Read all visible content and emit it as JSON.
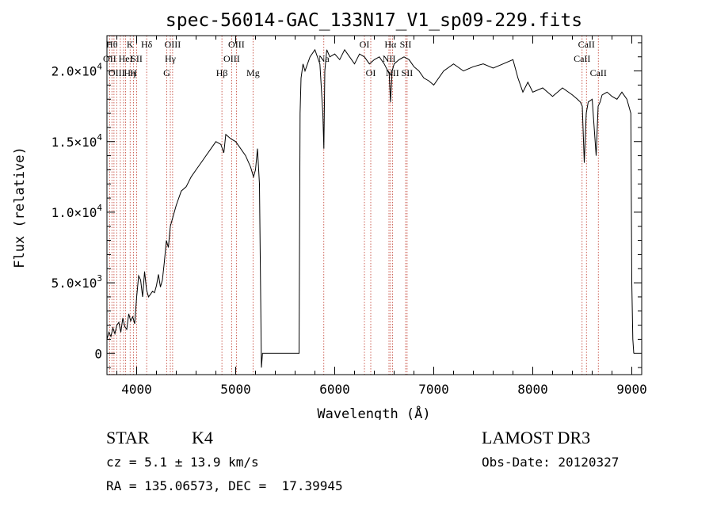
{
  "chart_data": {
    "type": "line",
    "title": "spec-56014-GAC_133N17_V1_sp09-229.fits",
    "xlabel": "Wavelength (Å)",
    "ylabel": "Flux (relative)",
    "xlim": [
      3700,
      9100
    ],
    "ylim": [
      -1500,
      22500
    ],
    "xticks": [
      4000,
      5000,
      6000,
      7000,
      8000,
      9000
    ],
    "xtick_labels": [
      "4000",
      "5000",
      "6000",
      "7000",
      "8000",
      "9000"
    ],
    "yticks": [
      0,
      5000,
      10000,
      15000,
      20000
    ],
    "ytick_labels": [
      {
        "base": "0",
        "exp": ""
      },
      {
        "base": "5.0×10",
        "exp": "3"
      },
      {
        "base": "1.0×10",
        "exp": "4"
      },
      {
        "base": "1.5×10",
        "exp": "4"
      },
      {
        "base": "2.0×10",
        "exp": "4"
      }
    ],
    "grid": false,
    "series": [
      {
        "color": "#000000",
        "x": [
          3700,
          3720,
          3740,
          3760,
          3780,
          3800,
          3820,
          3840,
          3860,
          3880,
          3900,
          3920,
          3940,
          3960,
          3980,
          4000,
          4020,
          4040,
          4060,
          4080,
          4100,
          4120,
          4140,
          4160,
          4180,
          4200,
          4220,
          4240,
          4260,
          4280,
          4300,
          4320,
          4340,
          4360,
          4380,
          4400,
          4450,
          4500,
          4550,
          4600,
          4650,
          4700,
          4750,
          4800,
          4850,
          4880,
          4900,
          4950,
          5000,
          5050,
          5100,
          5150,
          5180,
          5200,
          5220,
          5240,
          5260,
          5270,
          5300,
          5400,
          5500,
          5600,
          5640,
          5650,
          5660,
          5680,
          5700,
          5750,
          5800,
          5850,
          5880,
          5890,
          5900,
          5920,
          5950,
          6000,
          6050,
          6100,
          6150,
          6200,
          6250,
          6300,
          6350,
          6400,
          6450,
          6500,
          6550,
          6563,
          6580,
          6600,
          6650,
          6700,
          6750,
          6800,
          6850,
          6900,
          6950,
          7000,
          7100,
          7200,
          7300,
          7400,
          7500,
          7600,
          7700,
          7800,
          7850,
          7900,
          7950,
          8000,
          8100,
          8200,
          8300,
          8400,
          8450,
          8480,
          8500,
          8520,
          8540,
          8560,
          8600,
          8640,
          8660,
          8680,
          8700,
          8750,
          8800,
          8850,
          8900,
          8950,
          8990,
          9000,
          9010,
          9020
        ],
        "y": [
          1000,
          1500,
          1200,
          1800,
          1400,
          2000,
          2200,
          1500,
          2500,
          1900,
          1700,
          2800,
          2300,
          2600,
          2100,
          4000,
          5500,
          5200,
          4000,
          5800,
          4500,
          4000,
          4200,
          4400,
          4300,
          4800,
          5600,
          4700,
          5200,
          6500,
          8000,
          7500,
          9000,
          9500,
          10000,
          10500,
          11500,
          11800,
          12500,
          13000,
          13500,
          14000,
          14500,
          15000,
          14800,
          14200,
          15500,
          15200,
          15000,
          14500,
          14000,
          13200,
          12500,
          13000,
          14500,
          12000,
          -1000,
          0,
          0,
          0,
          0,
          0,
          0,
          17000,
          19500,
          20500,
          20000,
          21000,
          21500,
          20500,
          17000,
          14500,
          20000,
          21500,
          21000,
          21200,
          20800,
          21500,
          21000,
          20500,
          21200,
          21000,
          20500,
          20800,
          21000,
          20500,
          19800,
          17800,
          20000,
          20500,
          20800,
          21000,
          20800,
          20300,
          20000,
          19500,
          19300,
          19000,
          20000,
          20500,
          20000,
          20300,
          20500,
          20200,
          20500,
          20800,
          19500,
          18500,
          19200,
          18500,
          18800,
          18200,
          18800,
          18300,
          18000,
          17800,
          17500,
          13500,
          17000,
          17800,
          18000,
          14000,
          17500,
          17800,
          18300,
          18500,
          18200,
          18000,
          18500,
          18000,
          17000,
          5000,
          1000,
          0
        ]
      }
    ],
    "lines": [
      {
        "x": 3727,
        "label": "OII",
        "row": 1,
        "dx": 0
      },
      {
        "x": 3750,
        "label": "Hθ",
        "row": 0,
        "dx": 0
      },
      {
        "x": 3771,
        "label": "",
        "row": 0,
        "dx": 0
      },
      {
        "x": 3798,
        "label": "OIII",
        "row": 2,
        "dx": 0
      },
      {
        "x": 3835,
        "label": "Hη",
        "row": 2,
        "dx": 12
      },
      {
        "x": 3868,
        "label": "",
        "row": 0,
        "dx": 0
      },
      {
        "x": 3889,
        "label": "HeI",
        "row": 1,
        "dx": 0
      },
      {
        "x": 3934,
        "label": "K",
        "row": 0,
        "dx": 0
      },
      {
        "x": 3969,
        "label": "H",
        "row": 2,
        "dx": 0
      },
      {
        "x": 4000,
        "label": "SII",
        "row": 1,
        "dx": 0
      },
      {
        "x": 4101,
        "label": "Hδ",
        "row": 0,
        "dx": 0
      },
      {
        "x": 4304,
        "label": "G",
        "row": 2,
        "dx": 0
      },
      {
        "x": 4340,
        "label": "Hγ",
        "row": 1,
        "dx": 0
      },
      {
        "x": 4363,
        "label": "OIII",
        "row": 0,
        "dx": 0
      },
      {
        "x": 4861,
        "label": "Hβ",
        "row": 2,
        "dx": 0
      },
      {
        "x": 4959,
        "label": "OIII",
        "row": 1,
        "dx": 0
      },
      {
        "x": 5007,
        "label": "OIII",
        "row": 0,
        "dx": 0
      },
      {
        "x": 5175,
        "label": "Mg",
        "row": 2,
        "dx": 0
      },
      {
        "x": 5890,
        "label": "Na",
        "row": 1,
        "dx": 0
      },
      {
        "x": 6300,
        "label": "OI",
        "row": 0,
        "dx": 0
      },
      {
        "x": 6364,
        "label": "OI",
        "row": 2,
        "dx": 0
      },
      {
        "x": 6548,
        "label": "NII",
        "row": 1,
        "dx": 0
      },
      {
        "x": 6563,
        "label": "Hα",
        "row": 0,
        "dx": 0
      },
      {
        "x": 6583,
        "label": "NII",
        "row": 2,
        "dx": 0
      },
      {
        "x": 6716,
        "label": "SII",
        "row": 0,
        "dx": 0
      },
      {
        "x": 6731,
        "label": "SII",
        "row": 2,
        "dx": 0
      },
      {
        "x": 8498,
        "label": "CaII",
        "row": 1,
        "dx": 0
      },
      {
        "x": 8542,
        "label": "CaII",
        "row": 0,
        "dx": 0
      },
      {
        "x": 8662,
        "label": "CaII",
        "row": 2,
        "dx": 0
      }
    ]
  },
  "info": {
    "object_class": "STAR",
    "subclass": "K4",
    "survey": "LAMOST DR3",
    "cz": "cz = 5.1 ± 13.9 km/s",
    "obs_date": "Obs-Date: 20120327",
    "coords": "RA = 135.06573, DEC =  17.39945"
  }
}
